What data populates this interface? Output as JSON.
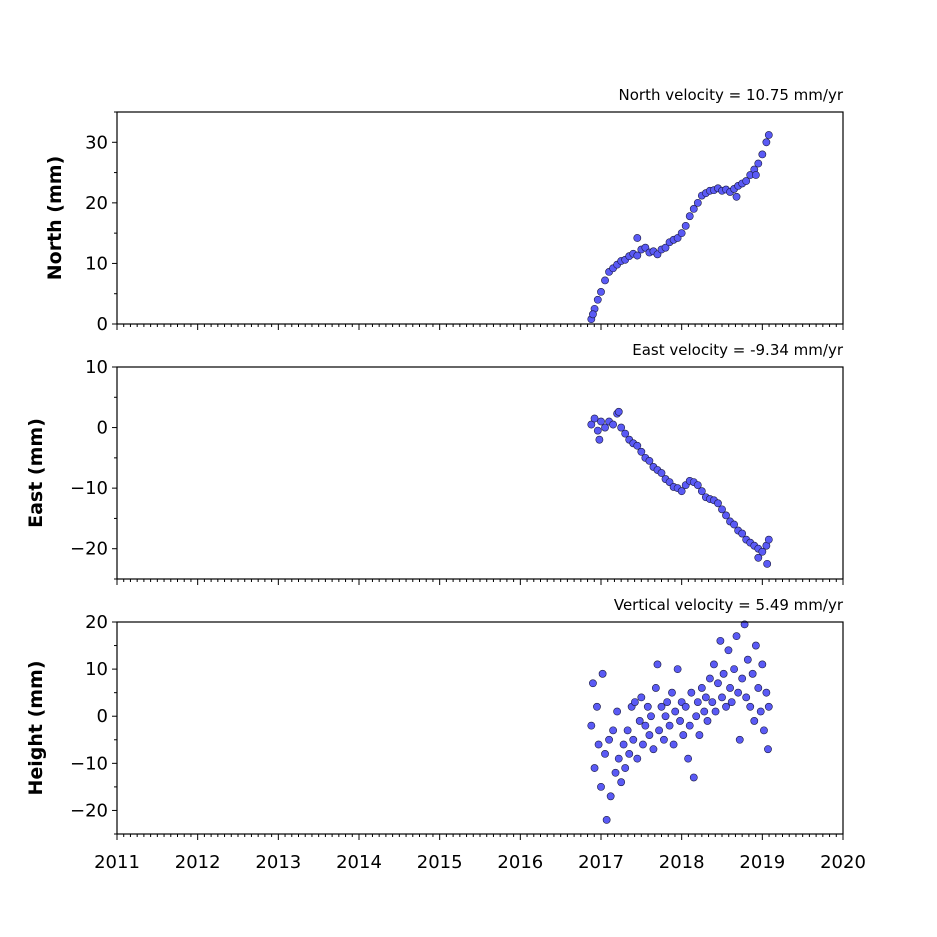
{
  "colors": {
    "marker_fill": "#5a5af5",
    "marker_edge": "#1a1a40",
    "axes": "#000000",
    "background": "#ffffff"
  },
  "chart_data": [
    {
      "type": "scatter",
      "id": "north",
      "title": "North velocity = 10.75 mm/yr",
      "ylabel": "North (mm)",
      "xlabel": "",
      "xlim": [
        2011,
        2020
      ],
      "ylim": [
        0,
        35
      ],
      "yticks": [
        0,
        10,
        20,
        30
      ],
      "xtick_labels": [],
      "grid": false,
      "series": [
        {
          "points": [
            [
              2016.88,
              0.8
            ],
            [
              2016.92,
              2.5
            ],
            [
              2016.96,
              4.0
            ],
            [
              2017.0,
              5.3
            ],
            [
              2017.05,
              7.2
            ],
            [
              2017.1,
              8.6
            ],
            [
              2017.15,
              9.2
            ],
            [
              2017.2,
              9.8
            ],
            [
              2017.25,
              10.4
            ],
            [
              2017.3,
              10.6
            ],
            [
              2017.35,
              11.2
            ],
            [
              2017.4,
              11.6
            ],
            [
              2017.45,
              11.3
            ],
            [
              2017.5,
              12.3
            ],
            [
              2017.55,
              12.6
            ],
            [
              2017.6,
              11.8
            ],
            [
              2017.65,
              12.0
            ],
            [
              2017.7,
              11.5
            ],
            [
              2017.75,
              12.3
            ],
            [
              2017.8,
              12.6
            ],
            [
              2017.85,
              13.5
            ],
            [
              2017.9,
              13.9
            ],
            [
              2017.95,
              14.2
            ],
            [
              2018.0,
              15.0
            ],
            [
              2018.05,
              16.2
            ],
            [
              2018.1,
              17.8
            ],
            [
              2018.15,
              19.0
            ],
            [
              2018.2,
              20.0
            ],
            [
              2018.25,
              21.2
            ],
            [
              2018.3,
              21.6
            ],
            [
              2018.35,
              22.0
            ],
            [
              2018.4,
              22.1
            ],
            [
              2018.45,
              22.4
            ],
            [
              2018.5,
              22.0
            ],
            [
              2018.55,
              22.2
            ],
            [
              2018.6,
              21.8
            ],
            [
              2018.65,
              22.3
            ],
            [
              2018.7,
              22.8
            ],
            [
              2018.75,
              23.2
            ],
            [
              2018.8,
              23.6
            ],
            [
              2018.85,
              24.6
            ],
            [
              2018.9,
              25.5
            ],
            [
              2018.95,
              26.5
            ],
            [
              2019.0,
              28.0
            ],
            [
              2019.05,
              30.0
            ],
            [
              2019.08,
              31.2
            ],
            [
              2018.92,
              24.6
            ],
            [
              2018.68,
              21.0
            ],
            [
              2017.45,
              14.2
            ],
            [
              2016.9,
              1.6
            ]
          ]
        }
      ]
    },
    {
      "type": "scatter",
      "id": "east",
      "title": "East velocity = -9.34 mm/yr",
      "ylabel": "East (mm)",
      "xlabel": "",
      "xlim": [
        2011,
        2020
      ],
      "ylim": [
        -25,
        10
      ],
      "yticks": [
        -20,
        -10,
        0,
        10
      ],
      "xtick_labels": [],
      "grid": false,
      "series": [
        {
          "points": [
            [
              2016.88,
              0.5
            ],
            [
              2016.92,
              1.5
            ],
            [
              2016.96,
              -0.5
            ],
            [
              2017.0,
              1.0
            ],
            [
              2017.05,
              0.0
            ],
            [
              2017.1,
              1.0
            ],
            [
              2017.15,
              0.5
            ],
            [
              2017.2,
              2.3
            ],
            [
              2017.25,
              0.0
            ],
            [
              2017.3,
              -1.0
            ],
            [
              2017.35,
              -2.0
            ],
            [
              2017.4,
              -2.6
            ],
            [
              2017.45,
              -3.0
            ],
            [
              2017.5,
              -4.0
            ],
            [
              2017.55,
              -5.0
            ],
            [
              2017.6,
              -5.5
            ],
            [
              2017.65,
              -6.5
            ],
            [
              2017.7,
              -7.0
            ],
            [
              2017.75,
              -7.5
            ],
            [
              2017.8,
              -8.5
            ],
            [
              2017.85,
              -9.0
            ],
            [
              2017.9,
              -9.8
            ],
            [
              2017.95,
              -10.0
            ],
            [
              2018.0,
              -10.5
            ],
            [
              2018.05,
              -9.5
            ],
            [
              2018.1,
              -8.8
            ],
            [
              2018.15,
              -9.0
            ],
            [
              2018.2,
              -9.5
            ],
            [
              2018.25,
              -10.5
            ],
            [
              2018.3,
              -11.5
            ],
            [
              2018.35,
              -11.8
            ],
            [
              2018.4,
              -12.0
            ],
            [
              2018.45,
              -12.5
            ],
            [
              2018.5,
              -13.5
            ],
            [
              2018.55,
              -14.5
            ],
            [
              2018.6,
              -15.5
            ],
            [
              2018.65,
              -16.0
            ],
            [
              2018.7,
              -17.0
            ],
            [
              2018.75,
              -17.5
            ],
            [
              2018.8,
              -18.5
            ],
            [
              2018.85,
              -19.0
            ],
            [
              2018.9,
              -19.5
            ],
            [
              2018.95,
              -20.0
            ],
            [
              2019.0,
              -20.5
            ],
            [
              2019.05,
              -19.5
            ],
            [
              2019.08,
              -18.5
            ],
            [
              2019.06,
              -22.5
            ],
            [
              2017.22,
              2.6
            ],
            [
              2016.98,
              -2.0
            ],
            [
              2018.95,
              -21.5
            ]
          ]
        }
      ]
    },
    {
      "type": "scatter",
      "id": "height",
      "title": "Vertical velocity = 5.49 mm/yr",
      "ylabel": "Height (mm)",
      "xlabel": "",
      "xlim": [
        2011,
        2020
      ],
      "ylim": [
        -25,
        20
      ],
      "yticks": [
        -20,
        -10,
        0,
        10,
        20
      ],
      "xtick_labels": [
        "2011",
        "2012",
        "2013",
        "2014",
        "2015",
        "2016",
        "2017",
        "2018",
        "2019",
        "2020"
      ],
      "grid": false,
      "series": [
        {
          "points": [
            [
              2016.88,
              -2.0
            ],
            [
              2016.9,
              7.0
            ],
            [
              2016.92,
              -11.0
            ],
            [
              2016.95,
              2.0
            ],
            [
              2016.97,
              -6.0
            ],
            [
              2017.0,
              -15.0
            ],
            [
              2017.02,
              9.0
            ],
            [
              2017.05,
              -8.0
            ],
            [
              2017.07,
              -22.0
            ],
            [
              2017.1,
              -5.0
            ],
            [
              2017.12,
              -17.0
            ],
            [
              2017.15,
              -3.0
            ],
            [
              2017.18,
              -12.0
            ],
            [
              2017.2,
              1.0
            ],
            [
              2017.22,
              -9.0
            ],
            [
              2017.25,
              -14.0
            ],
            [
              2017.28,
              -6.0
            ],
            [
              2017.3,
              -11.0
            ],
            [
              2017.33,
              -3.0
            ],
            [
              2017.35,
              -8.0
            ],
            [
              2017.38,
              2.0
            ],
            [
              2017.4,
              -5.0
            ],
            [
              2017.42,
              3.0
            ],
            [
              2017.45,
              -9.0
            ],
            [
              2017.48,
              -1.0
            ],
            [
              2017.5,
              4.0
            ],
            [
              2017.52,
              -6.0
            ],
            [
              2017.55,
              -2.0
            ],
            [
              2017.58,
              2.0
            ],
            [
              2017.6,
              -4.0
            ],
            [
              2017.62,
              0.0
            ],
            [
              2017.65,
              -7.0
            ],
            [
              2017.68,
              6.0
            ],
            [
              2017.7,
              11.0
            ],
            [
              2017.72,
              -3.0
            ],
            [
              2017.75,
              2.0
            ],
            [
              2017.78,
              -5.0
            ],
            [
              2017.8,
              0.0
            ],
            [
              2017.82,
              3.0
            ],
            [
              2017.85,
              -2.0
            ],
            [
              2017.88,
              5.0
            ],
            [
              2017.9,
              -6.0
            ],
            [
              2017.92,
              1.0
            ],
            [
              2017.95,
              10.0
            ],
            [
              2017.98,
              -1.0
            ],
            [
              2018.0,
              3.0
            ],
            [
              2018.02,
              -4.0
            ],
            [
              2018.05,
              2.0
            ],
            [
              2018.08,
              -9.0
            ],
            [
              2018.1,
              -2.0
            ],
            [
              2018.12,
              5.0
            ],
            [
              2018.15,
              -13.0
            ],
            [
              2018.18,
              0.0
            ],
            [
              2018.2,
              3.0
            ],
            [
              2018.22,
              -4.0
            ],
            [
              2018.25,
              6.0
            ],
            [
              2018.28,
              1.0
            ],
            [
              2018.3,
              4.0
            ],
            [
              2018.32,
              -1.0
            ],
            [
              2018.35,
              8.0
            ],
            [
              2018.38,
              3.0
            ],
            [
              2018.4,
              11.0
            ],
            [
              2018.42,
              1.0
            ],
            [
              2018.45,
              7.0
            ],
            [
              2018.48,
              16.0
            ],
            [
              2018.5,
              4.0
            ],
            [
              2018.52,
              9.0
            ],
            [
              2018.55,
              2.0
            ],
            [
              2018.58,
              14.0
            ],
            [
              2018.6,
              6.0
            ],
            [
              2018.62,
              3.0
            ],
            [
              2018.65,
              10.0
            ],
            [
              2018.68,
              17.0
            ],
            [
              2018.7,
              5.0
            ],
            [
              2018.72,
              -5.0
            ],
            [
              2018.75,
              8.0
            ],
            [
              2018.78,
              19.5
            ],
            [
              2018.8,
              4.0
            ],
            [
              2018.82,
              12.0
            ],
            [
              2018.85,
              2.0
            ],
            [
              2018.88,
              9.0
            ],
            [
              2018.9,
              -1.0
            ],
            [
              2018.92,
              15.0
            ],
            [
              2018.95,
              6.0
            ],
            [
              2018.98,
              1.0
            ],
            [
              2019.0,
              11.0
            ],
            [
              2019.02,
              -3.0
            ],
            [
              2019.05,
              5.0
            ],
            [
              2019.07,
              -7.0
            ],
            [
              2019.08,
              2.0
            ]
          ]
        }
      ]
    }
  ]
}
